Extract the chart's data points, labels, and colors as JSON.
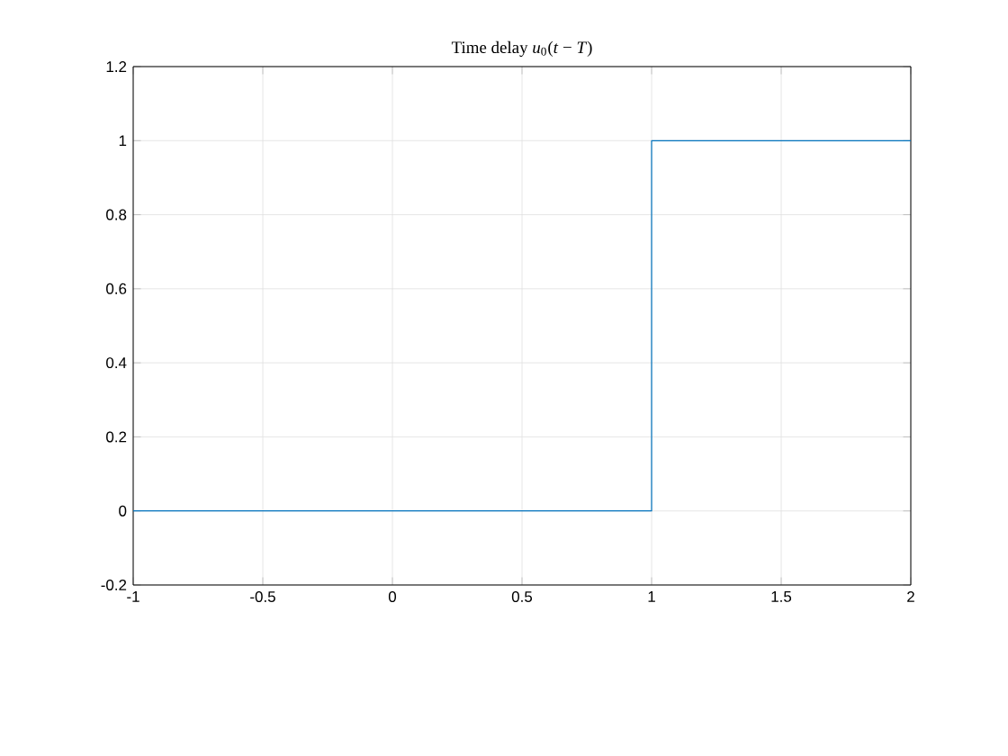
{
  "chart_data": {
    "type": "step",
    "title": "Time delay *u*$_{0}$(*t* − *T*)",
    "x": [
      -1,
      1,
      2
    ],
    "series": [
      {
        "color": "#0072bd",
        "values": [
          0,
          1,
          1
        ]
      }
    ],
    "xlim": [
      -1,
      2
    ],
    "xticks": [
      -1,
      -0.5,
      0,
      0.5,
      1,
      1.5,
      2
    ],
    "ylim": [
      -0.2,
      1.2
    ],
    "yticks": [
      -0.2,
      0,
      0.2,
      0.4,
      0.6,
      0.8,
      1,
      1.2
    ],
    "grid": true
  }
}
